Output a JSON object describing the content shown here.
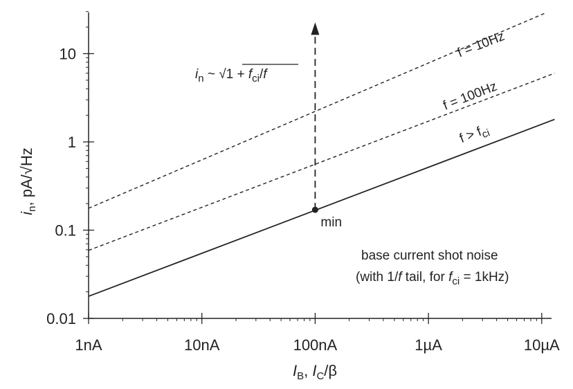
{
  "chart_data": {
    "type": "line",
    "x_scale": "log",
    "y_scale": "log",
    "xlim": [
      1e-09,
      1.3e-05
    ],
    "ylim": [
      0.01,
      30
    ],
    "x_ticks": [
      {
        "value": 1e-09,
        "label": "1nA"
      },
      {
        "value": 1e-08,
        "label": "10nA"
      },
      {
        "value": 1e-07,
        "label": "100nA"
      },
      {
        "value": 1e-06,
        "label": "1µA"
      },
      {
        "value": 1e-05,
        "label": "10µA"
      }
    ],
    "y_ticks": [
      {
        "value": 0.01,
        "label": "0.01"
      },
      {
        "value": 0.1,
        "label": "0.1"
      },
      {
        "value": 1,
        "label": "1"
      },
      {
        "value": 10,
        "label": "10"
      }
    ],
    "xlabel": {
      "i1": "I",
      "s1": "B",
      "sep": ",  ",
      "i2": "I",
      "s2": "C",
      "rest": "/β"
    },
    "ylabel": {
      "i": "i",
      "s": "n",
      "rest": ", pA/√Hz"
    },
    "series": [
      {
        "name": "f > f_ci",
        "style": "solid",
        "x": [
          1e-09,
          1.3e-05
        ],
        "y": [
          0.0178,
          1.8
        ]
      },
      {
        "name": "f = 100Hz",
        "style": "dashed",
        "x": [
          1e-09,
          1.3e-05
        ],
        "y": [
          0.059,
          6.0
        ]
      },
      {
        "name": "f = 10Hz",
        "style": "dashed",
        "x": [
          1e-09,
          1.3e-05
        ],
        "y": [
          0.177,
          32
        ]
      }
    ],
    "series_labels": {
      "f10": {
        "pre": "f = 10Hz",
        "x": 3e-06,
        "y": 11.5
      },
      "f100": {
        "pre": "f = 100Hz",
        "x": 2.4e-06,
        "y": 3.0
      },
      "fci": {
        "pre": "f > f",
        "sub": "ci",
        "x": 2.6e-06,
        "y": 1.12
      }
    },
    "minimum_point": {
      "x": 1e-07,
      "y": 0.17,
      "label": "min"
    },
    "arrow": {
      "x": 1e-07,
      "from": 0.17,
      "to": 21
    },
    "formula": {
      "i": "i",
      "s": "n",
      "mid": " ~ √1 + ",
      "f1": "f",
      "s2": "ci",
      "tail": "/",
      "f2": "f"
    },
    "note": {
      "line1": "base current shot noise",
      "line2a": "(with 1/",
      "line2f": "f",
      "line2b": " tail, for ",
      "line2f2": "f",
      "line2s": "ci",
      "line2c": " = 1kHz)"
    }
  }
}
